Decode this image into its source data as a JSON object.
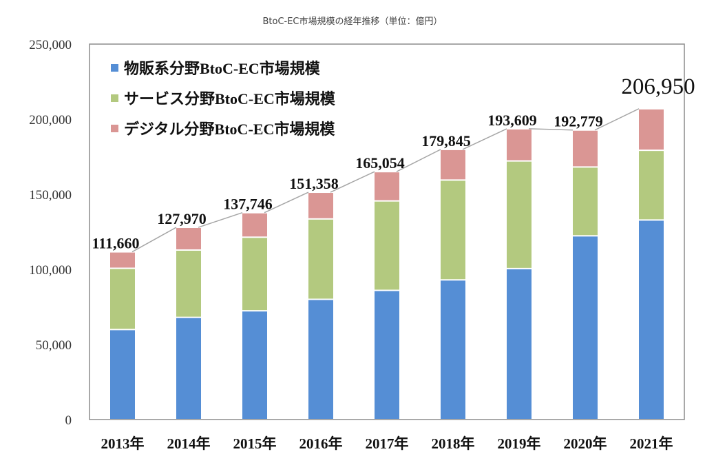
{
  "chart_data": {
    "type": "bar",
    "stacked": true,
    "title": "BtoC-EC市場規模の経年推移（単位：億円）",
    "xlabel": "",
    "ylabel": "",
    "ylim": [
      0,
      250000
    ],
    "yticks": [
      0,
      50000,
      100000,
      150000,
      200000,
      250000
    ],
    "ytick_labels": [
      "0",
      "50,000",
      "100,000",
      "150,000",
      "200,000",
      "250,000"
    ],
    "grid": false,
    "legend_position": "top-left",
    "categories": [
      "2013年",
      "2014年",
      "2015年",
      "2016年",
      "2017年",
      "2018年",
      "2019年",
      "2020年",
      "2021年"
    ],
    "series": [
      {
        "name": "物販系分野BtoC-EC市場規模",
        "color": "#558ed5",
        "values": [
          59931,
          68043,
          72398,
          80043,
          86008,
          92992,
          100515,
          122333,
          132865
        ]
      },
      {
        "name": "サービス分野BtoC-EC市場規模",
        "color": "#b3c97f",
        "values": [
          40774,
          44816,
          49014,
          53532,
          59568,
          66471,
          71672,
          45832,
          46424
        ]
      },
      {
        "name": "デジタル分野BtoC-EC市場規模",
        "color": "#da9694",
        "values": [
          10955,
          15111,
          16334,
          17782,
          19478,
          20382,
          21422,
          24614,
          27661
        ]
      }
    ],
    "totals": [
      111660,
      127970,
      137746,
      151358,
      165054,
      179845,
      193609,
      192779,
      206950
    ],
    "total_labels": [
      "111,660",
      "127,970",
      "137,746",
      "151,358",
      "165,054",
      "179,845",
      "193,609",
      "192,779",
      "206,950"
    ],
    "total_line_color": "#a6a6a6"
  }
}
